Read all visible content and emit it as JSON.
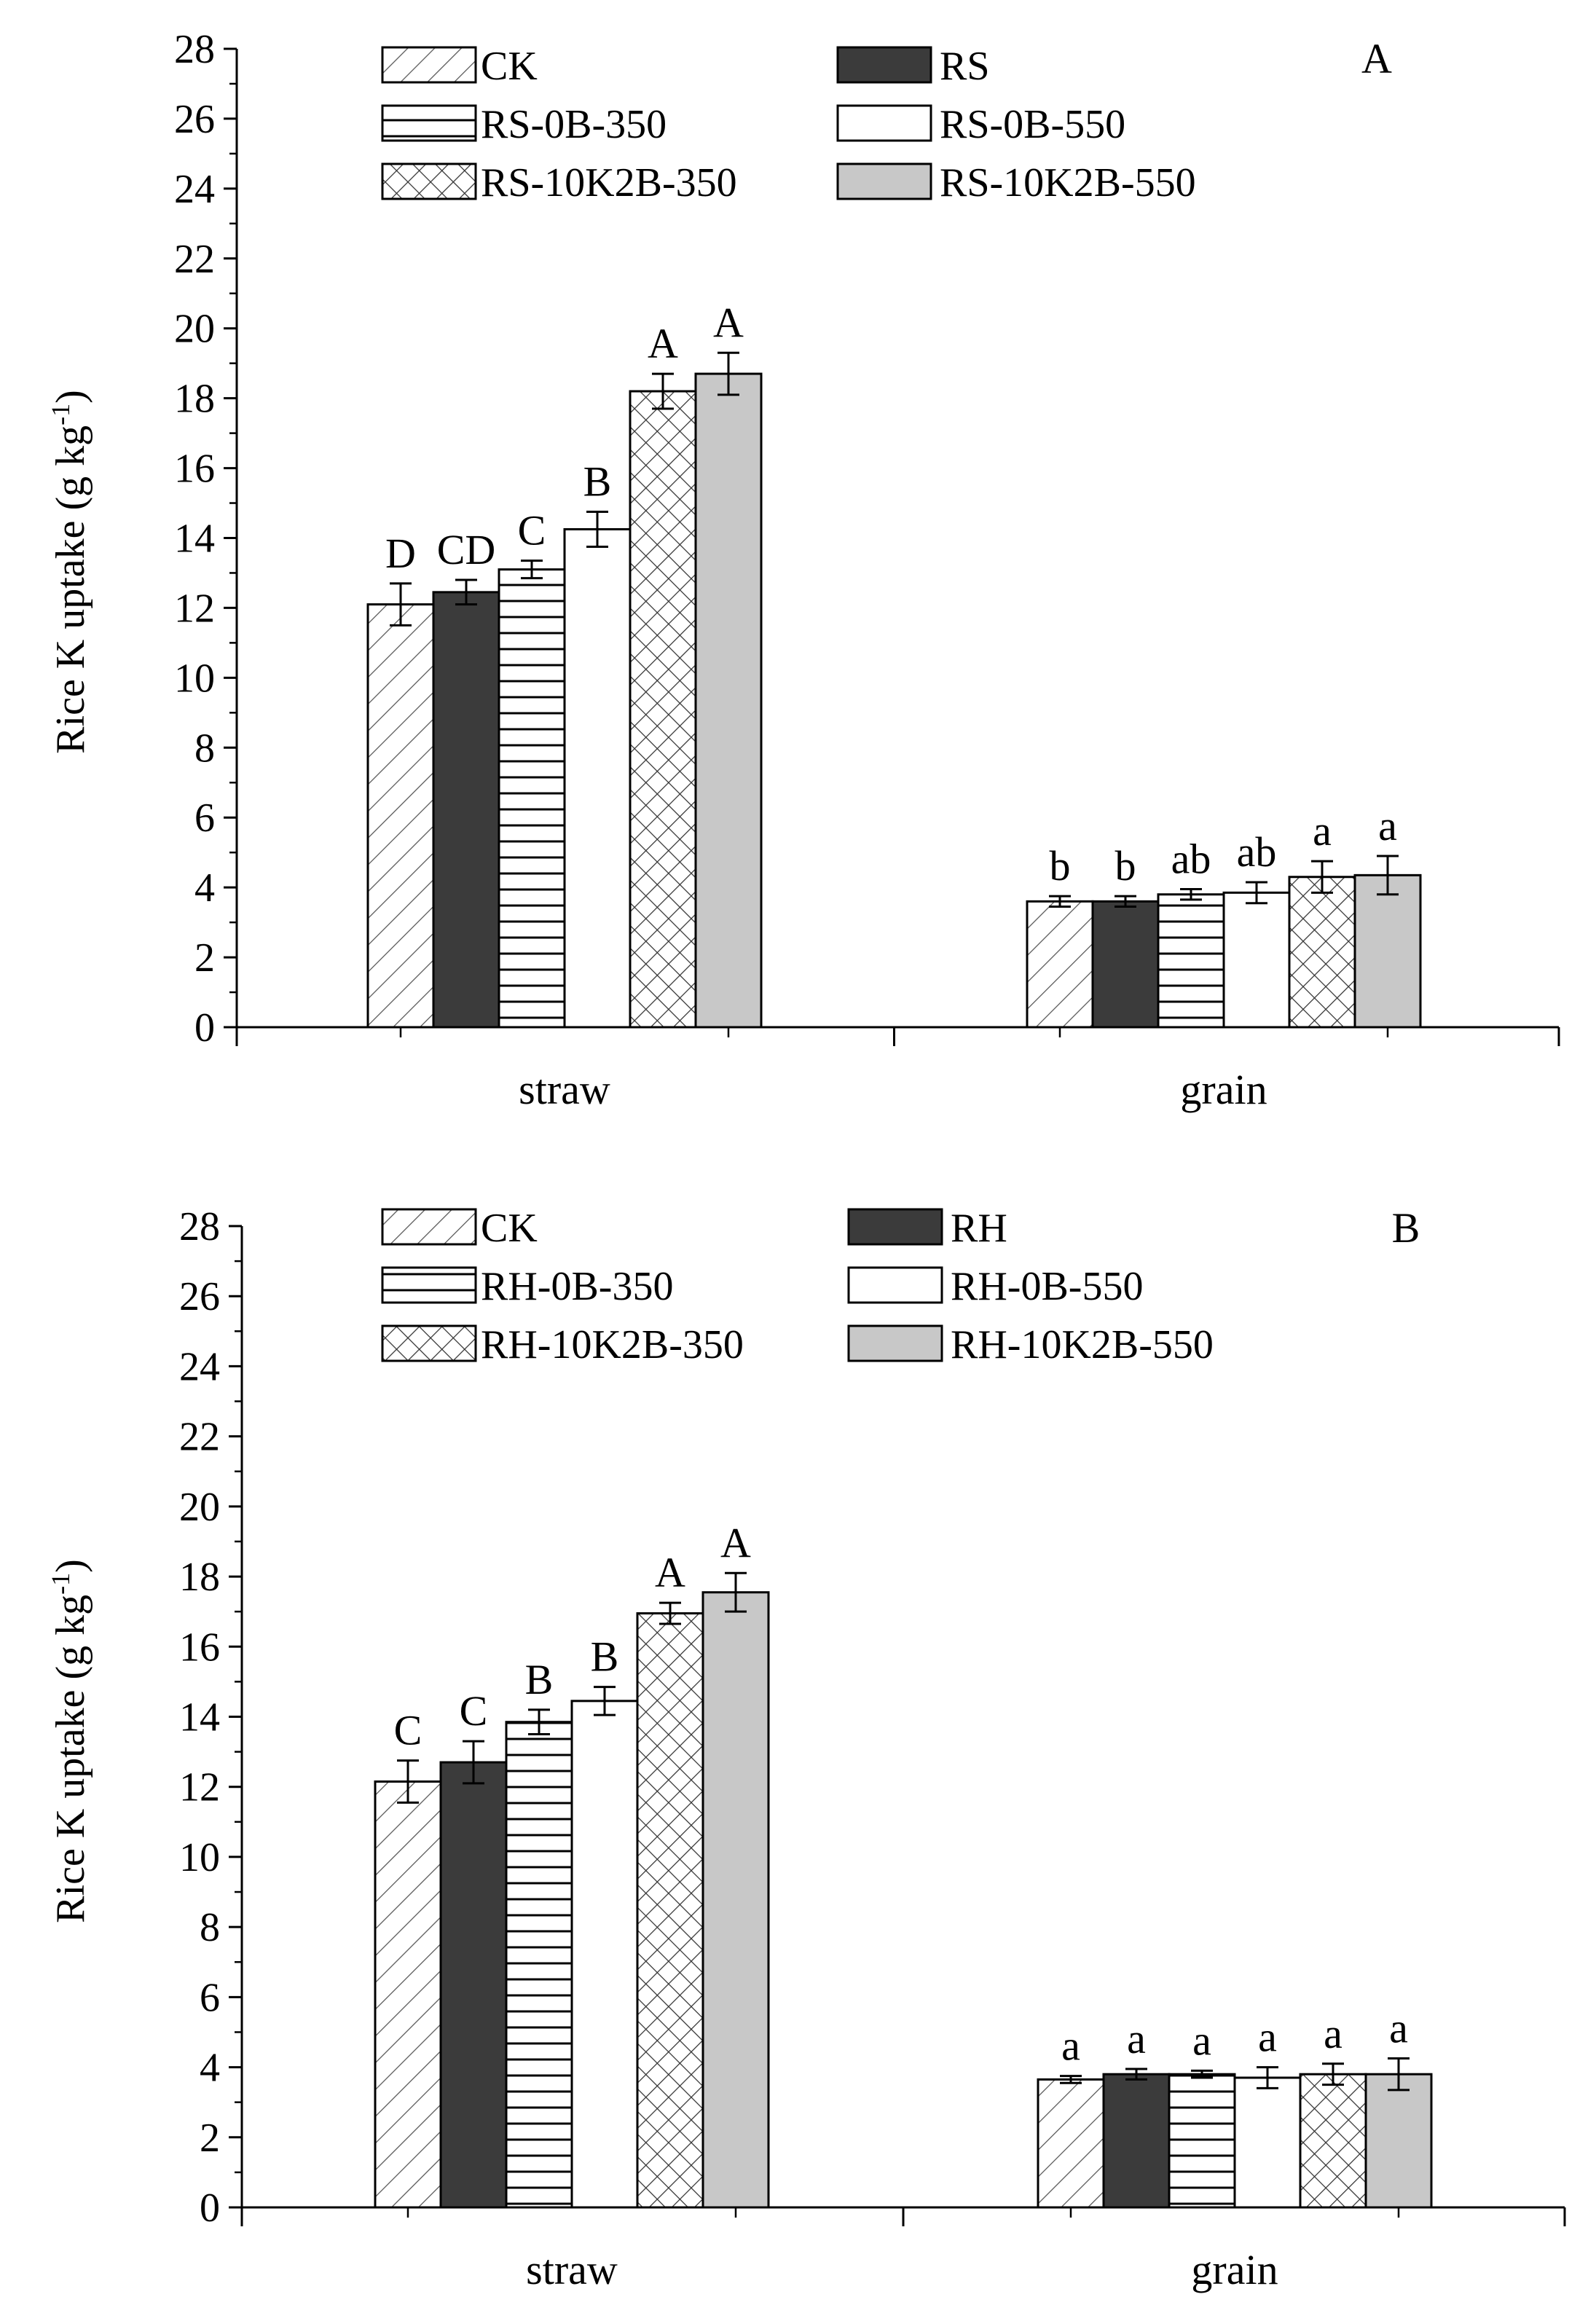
{
  "chart_data": [
    {
      "type": "bar",
      "panel_label": "A",
      "ylabel": "Rice K uptake (g kg",
      "ylabel_sup": "-1",
      "ylabel_close": ")",
      "ylim": [
        0,
        28
      ],
      "yticks": [
        0,
        2,
        4,
        6,
        8,
        10,
        12,
        14,
        16,
        18,
        20,
        22,
        24,
        26,
        28
      ],
      "categories": [
        "straw",
        "grain"
      ],
      "series": [
        {
          "name": "CK",
          "pattern": "diag",
          "values": [
            12.1,
            3.6
          ],
          "errors": [
            0.6,
            0.15
          ],
          "letters": [
            "D",
            "b"
          ]
        },
        {
          "name": "RS",
          "pattern": "dark",
          "values": [
            12.45,
            3.6
          ],
          "errors": [
            0.35,
            0.15
          ],
          "letters": [
            "CD",
            "b"
          ]
        },
        {
          "name": "RS-0B-350",
          "pattern": "hlines",
          "values": [
            13.1,
            3.8
          ],
          "errors": [
            0.25,
            0.15
          ],
          "letters": [
            "C",
            "ab"
          ]
        },
        {
          "name": "RS-0B-550",
          "pattern": "white",
          "values": [
            14.25,
            3.85
          ],
          "errors": [
            0.5,
            0.3
          ],
          "letters": [
            "B",
            "ab"
          ]
        },
        {
          "name": "RS-10K2B-350",
          "pattern": "cross",
          "values": [
            18.2,
            4.3
          ],
          "errors": [
            0.5,
            0.45
          ],
          "letters": [
            "A",
            "a"
          ]
        },
        {
          "name": "RS-10K2B-550",
          "pattern": "gray",
          "values": [
            18.7,
            4.35
          ],
          "errors": [
            0.6,
            0.55
          ],
          "letters": [
            "A",
            "a"
          ]
        }
      ]
    },
    {
      "type": "bar",
      "panel_label": "B",
      "ylabel": "Rice K uptake (g kg",
      "ylabel_sup": "-1",
      "ylabel_close": ")",
      "ylim": [
        0,
        28
      ],
      "yticks": [
        0,
        2,
        4,
        6,
        8,
        10,
        12,
        14,
        16,
        18,
        20,
        22,
        24,
        26,
        28
      ],
      "categories": [
        "straw",
        "grain"
      ],
      "series": [
        {
          "name": "CK",
          "pattern": "diag",
          "values": [
            12.15,
            3.65
          ],
          "errors": [
            0.6,
            0.1
          ],
          "letters": [
            "C",
            "a"
          ]
        },
        {
          "name": "RH",
          "pattern": "dark",
          "values": [
            12.7,
            3.8
          ],
          "errors": [
            0.6,
            0.15
          ],
          "letters": [
            "C",
            "a"
          ]
        },
        {
          "name": "RH-0B-350",
          "pattern": "hlines",
          "values": [
            13.85,
            3.8
          ],
          "errors": [
            0.35,
            0.1
          ],
          "letters": [
            "B",
            "a"
          ]
        },
        {
          "name": "RH-0B-550",
          "pattern": "white",
          "values": [
            14.45,
            3.7
          ],
          "errors": [
            0.4,
            0.3
          ],
          "letters": [
            "B",
            "a"
          ]
        },
        {
          "name": "RH-10K2B-350",
          "pattern": "cross",
          "values": [
            16.95,
            3.8
          ],
          "errors": [
            0.3,
            0.3
          ],
          "letters": [
            "A",
            "a"
          ]
        },
        {
          "name": "RH-10K2B-550",
          "pattern": "gray",
          "values": [
            17.55,
            3.8
          ],
          "errors": [
            0.55,
            0.45
          ],
          "letters": [
            "A",
            "a"
          ]
        }
      ]
    }
  ],
  "colors": {
    "dark": "#3b3b3b",
    "gray": "#c8c8c8",
    "white": "#ffffff",
    "stroke": "#000000"
  }
}
